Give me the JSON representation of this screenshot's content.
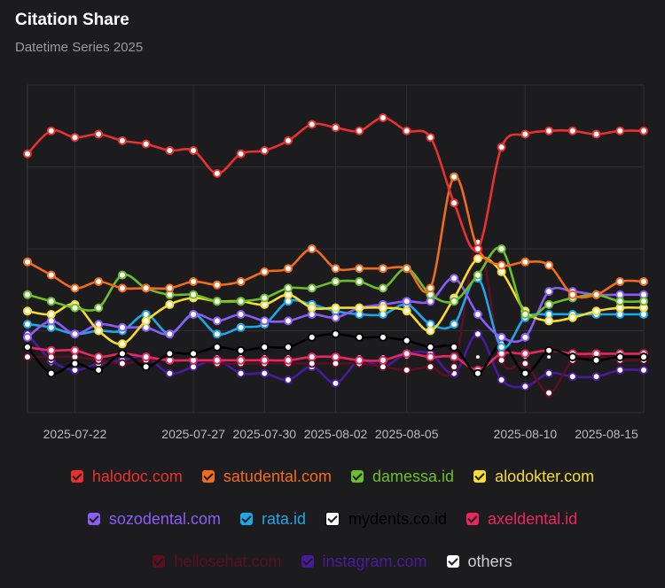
{
  "header": {
    "title": "Citation Share",
    "subtitle": "Datetime Series 2025"
  },
  "chart_data": {
    "type": "line",
    "title": "Citation Share",
    "subtitle": "Datetime Series 2025",
    "x": [
      "2025-07-20",
      "2025-07-21",
      "2025-07-22",
      "2025-07-23",
      "2025-07-24",
      "2025-07-25",
      "2025-07-26",
      "2025-07-27",
      "2025-07-28",
      "2025-07-29",
      "2025-07-30",
      "2025-07-31",
      "2025-08-01",
      "2025-08-02",
      "2025-08-03",
      "2025-08-04",
      "2025-08-05",
      "2025-08-06",
      "2025-08-07",
      "2025-08-08",
      "2025-08-09",
      "2025-08-10",
      "2025-08-11",
      "2025-08-12",
      "2025-08-13",
      "2025-08-14",
      "2025-08-15"
    ],
    "xticks": [
      "2025-07-22",
      "2025-07-27",
      "2025-07-30",
      "2025-08-02",
      "2025-08-05",
      "2025-08-10",
      "2025-08-15"
    ],
    "ylim": [
      0,
      100
    ],
    "grid": true,
    "legend_position": "bottom",
    "series": [
      {
        "name": "halodoc.com",
        "color": "#e8312e",
        "values": [
          79,
          86,
          84,
          85,
          83,
          82,
          80,
          80,
          73,
          79,
          80,
          83,
          88,
          87,
          86,
          90,
          86,
          84,
          64,
          50,
          81,
          85,
          86,
          86,
          85,
          86,
          86
        ]
      },
      {
        "name": "satudental.com",
        "color": "#f26b1d",
        "values": [
          46,
          42,
          38,
          40,
          38,
          38,
          38,
          40,
          39,
          40,
          43,
          44,
          50,
          44,
          44,
          44,
          44,
          38,
          72,
          50,
          45,
          46,
          45,
          36,
          36,
          40,
          40
        ]
      },
      {
        "name": "damessa.id",
        "color": "#6cbf2b",
        "values": [
          36,
          34,
          32,
          32,
          42,
          38,
          36,
          36,
          34,
          34,
          35,
          38,
          38,
          40,
          40,
          38,
          44,
          36,
          34,
          42,
          50,
          30,
          33,
          35,
          36,
          34,
          34
        ]
      },
      {
        "name": "alodokter.com",
        "color": "#f5dc2e",
        "values": [
          31,
          30,
          33,
          25,
          21,
          28,
          33,
          35,
          34,
          34,
          33,
          36,
          32,
          32,
          32,
          32,
          31,
          25,
          35,
          47,
          43,
          31,
          28,
          29,
          31,
          32,
          32
        ]
      },
      {
        "name": "sozodental.com",
        "color": "#8b5cf6",
        "values": [
          23,
          28,
          24,
          27,
          26,
          26,
          24,
          30,
          28,
          30,
          28,
          28,
          30,
          29,
          32,
          33,
          34,
          34,
          41,
          30,
          23,
          23,
          37,
          37,
          36,
          36,
          36
        ]
      },
      {
        "name": "rata.id",
        "color": "#1ea7e8",
        "values": [
          27,
          26,
          24,
          25,
          25,
          30,
          24,
          30,
          24,
          26,
          27,
          34,
          33,
          31,
          30,
          30,
          33,
          27,
          27,
          41,
          20,
          29,
          30,
          30,
          30,
          30,
          30
        ]
      },
      {
        "name": "mydents.co.id",
        "color": "#000000",
        "values": [
          20,
          12,
          15,
          13,
          18,
          14,
          18,
          18,
          20,
          19,
          20,
          20,
          23,
          24,
          23,
          23,
          22,
          20,
          20,
          12,
          21,
          12,
          19,
          17,
          16,
          17,
          17
        ]
      },
      {
        "name": "axeldental.id",
        "color": "#e8275f",
        "values": [
          20,
          19,
          19,
          17,
          18,
          17,
          16,
          16,
          16,
          16,
          16,
          16,
          17,
          17,
          16,
          16,
          18,
          17,
          17,
          13,
          18,
          18,
          19,
          18,
          18,
          18,
          18
        ]
      },
      {
        "name": "hellosehat.com",
        "color": "#5a0f22",
        "values": [
          17,
          17,
          17,
          16,
          15,
          16,
          16,
          16,
          15,
          15,
          15,
          15,
          15,
          15,
          15,
          14,
          13,
          14,
          14,
          52,
          16,
          15,
          6,
          16,
          17,
          16,
          16
        ]
      },
      {
        "name": "instagram.com",
        "color": "#4a1a9c",
        "values": [
          24,
          16,
          13,
          15,
          16,
          17,
          12,
          14,
          16,
          12,
          12,
          10,
          14,
          9,
          16,
          14,
          18,
          18,
          12,
          24,
          10,
          8,
          12,
          11,
          11,
          13,
          13
        ]
      },
      {
        "name": "others",
        "color": "#ffffff",
        "values": [
          17,
          15,
          15,
          13,
          16,
          15,
          17,
          16,
          17,
          17,
          17,
          17,
          17,
          17,
          17,
          17,
          17,
          17,
          17,
          17,
          17,
          17,
          17,
          17,
          17,
          17,
          17
        ]
      }
    ]
  },
  "legend": {
    "rows": [
      [
        0,
        1,
        2,
        3
      ],
      [
        4,
        5,
        6,
        7
      ],
      [
        8,
        9,
        10
      ]
    ]
  }
}
